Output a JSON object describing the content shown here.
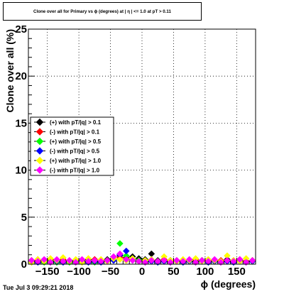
{
  "title": "Clone  over all for Primary vs ϕ (degrees) at | η | <= 1.0 at pT > 0.11",
  "timestamp": "Tue Jul  3 09:29:21 2018",
  "chart_data": {
    "type": "scatter",
    "xlabel": "ϕ (degrees)",
    "ylabel": "Clone  over all (%)",
    "xlim": [
      -180,
      180
    ],
    "ylim": [
      0,
      25
    ],
    "x_ticks": [
      -150,
      -100,
      -50,
      0,
      50,
      100,
      150
    ],
    "x_tick_labels": [
      "−150",
      "−100",
      "−50",
      "0",
      "50",
      "100",
      "150"
    ],
    "y_ticks": [
      0,
      5,
      10,
      15,
      20,
      25
    ],
    "grid": true,
    "legend_position": "left-middle",
    "x": [
      -175,
      -165,
      -155,
      -145,
      -135,
      -125,
      -115,
      -105,
      -95,
      -85,
      -75,
      -65,
      -55,
      -45,
      -35,
      -25,
      -15,
      -5,
      5,
      15,
      25,
      35,
      45,
      55,
      65,
      75,
      85,
      95,
      105,
      115,
      125,
      135,
      145,
      155,
      165,
      175
    ],
    "series": [
      {
        "name": "(+) with pT/|q| > 0.1",
        "color": "#000000",
        "marker": "diamond",
        "values": [
          0.3,
          0.4,
          0.3,
          0.5,
          0.3,
          0.4,
          0.3,
          0.4,
          0.3,
          0.5,
          0.4,
          0.3,
          0.5,
          0.6,
          0.9,
          0.7,
          0.8,
          0.6,
          0.5,
          1.1,
          0.4,
          0.3,
          0.4,
          0.3,
          0.3,
          0.4,
          0.3,
          0.4,
          0.3,
          0.4,
          0.3,
          0.5,
          0.3,
          0.4,
          0.3,
          0.4
        ]
      },
      {
        "name": "(-) with pT/|q| > 0.1",
        "color": "#ff0000",
        "marker": "diamond",
        "values": [
          0.4,
          0.5,
          0.3,
          0.4,
          0.3,
          0.5,
          0.4,
          0.3,
          0.4,
          0.3,
          0.5,
          0.3,
          0.4,
          0.5,
          0.7,
          0.6,
          0.5,
          0.4,
          0.3,
          0.4,
          0.3,
          0.5,
          0.3,
          0.4,
          0.3,
          0.4,
          0.5,
          0.3,
          0.4,
          0.3,
          0.4,
          0.3,
          0.4,
          0.5,
          0.3,
          0.4
        ]
      },
      {
        "name": "(+) with pT/|q| > 0.5",
        "color": "#00ff00",
        "marker": "diamond",
        "values": [
          0.2,
          0.3,
          0.2,
          0.3,
          0.2,
          0.3,
          0.2,
          0.3,
          0.2,
          0.3,
          0.2,
          0.3,
          0.4,
          0.5,
          2.2,
          0.9,
          0.6,
          0.4,
          0.3,
          0.4,
          0.2,
          0.3,
          0.2,
          0.3,
          0.2,
          0.3,
          0.2,
          0.3,
          0.2,
          0.3,
          0.2,
          0.3,
          0.2,
          0.3,
          0.2,
          0.3
        ]
      },
      {
        "name": "(-) with pT/|q| > 0.5",
        "color": "#0000ff",
        "marker": "diamond",
        "values": [
          0.3,
          0.2,
          0.3,
          0.2,
          0.3,
          0.2,
          0.3,
          0.2,
          0.3,
          0.2,
          0.3,
          0.2,
          0.3,
          0.4,
          1.0,
          1.4,
          0.5,
          0.3,
          0.2,
          0.3,
          0.2,
          0.3,
          0.2,
          0.3,
          0.2,
          0.3,
          0.2,
          0.3,
          0.2,
          0.3,
          0.2,
          0.3,
          0.2,
          0.3,
          0.2,
          0.3
        ]
      },
      {
        "name": "(+) with pT/|q| > 1.0",
        "color": "#ffff00",
        "marker": "diamond",
        "values": [
          0.2,
          0.5,
          0.3,
          0.6,
          0.4,
          0.7,
          0.3,
          0.5,
          0.2,
          0.6,
          0.4,
          0.5,
          0.3,
          0.6,
          0.5,
          0.4,
          0.6,
          0.3,
          0.4,
          0.5,
          0.3,
          0.8,
          0.4,
          0.3,
          0.5,
          0.4,
          0.6,
          0.3,
          0.5,
          0.4,
          0.3,
          0.9,
          0.4,
          0.3,
          0.6,
          0.4
        ]
      },
      {
        "name": "(-) with pT/|q| > 1.0",
        "color": "#ff00ff",
        "marker": "diamond",
        "values": [
          0.4,
          0.3,
          0.5,
          0.2,
          0.5,
          0.3,
          0.4,
          0.2,
          0.5,
          0.3,
          0.4,
          0.3,
          0.4,
          0.8,
          1.1,
          0.5,
          0.4,
          0.3,
          0.2,
          0.4,
          0.3,
          0.4,
          0.2,
          0.4,
          0.3,
          0.5,
          0.2,
          0.4,
          0.3,
          0.5,
          0.2,
          0.4,
          0.3,
          0.5,
          0.2,
          0.4
        ]
      }
    ]
  }
}
